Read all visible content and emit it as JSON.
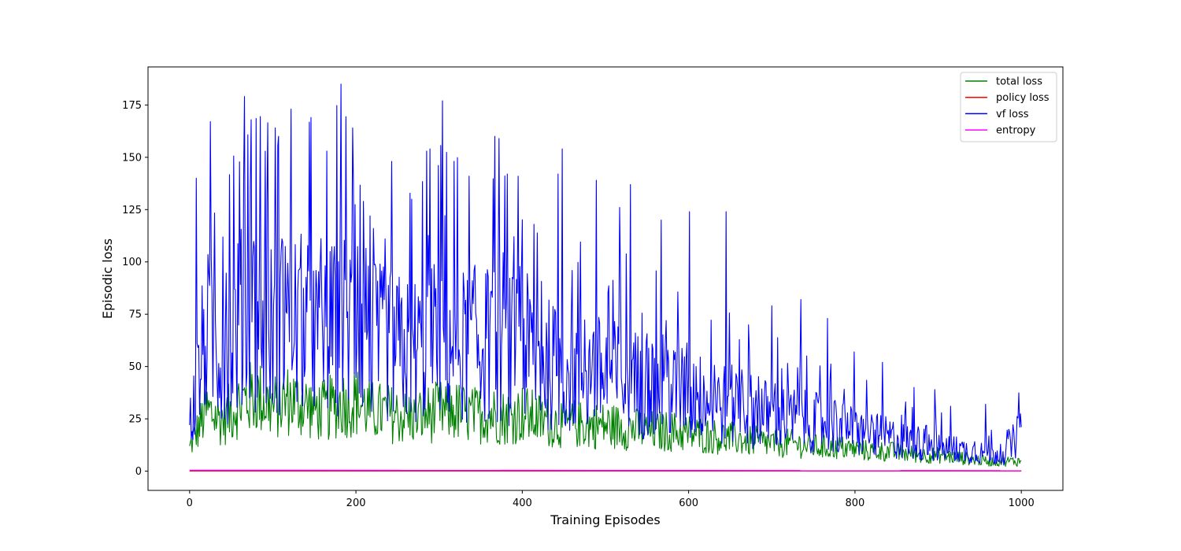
{
  "chart_data": {
    "type": "line",
    "title": "",
    "xlabel": "Training Episodes",
    "ylabel": "Episodic loss",
    "xlim": [
      -50,
      1050
    ],
    "ylim": [
      -9.2,
      193.2
    ],
    "xticks": [
      0,
      200,
      400,
      600,
      800,
      1000
    ],
    "yticks": [
      0,
      25,
      50,
      75,
      100,
      125,
      150,
      175
    ],
    "grid": false,
    "legend_position": "top-right",
    "series": [
      {
        "name": "total loss",
        "color": "#008000",
        "x": [
          0,
          20,
          40,
          60,
          80,
          100,
          120,
          140,
          160,
          180,
          200,
          220,
          240,
          260,
          280,
          300,
          320,
          340,
          360,
          380,
          400,
          420,
          440,
          460,
          480,
          500,
          520,
          540,
          560,
          580,
          600,
          620,
          640,
          660,
          680,
          700,
          720,
          740,
          760,
          780,
          800,
          820,
          840,
          860,
          880,
          900,
          920,
          940,
          960,
          980,
          1000
        ],
        "y": [
          12,
          30,
          26,
          34,
          38,
          32,
          36,
          33,
          30,
          34,
          35,
          30,
          29,
          27,
          28,
          30,
          30,
          28,
          29,
          27,
          29,
          26,
          24,
          24,
          23,
          23,
          22,
          21,
          20,
          20,
          19,
          18,
          17,
          16,
          15,
          14,
          14,
          13,
          12,
          12,
          11,
          10,
          10,
          9,
          8,
          8,
          7,
          6,
          5,
          5,
          5
        ]
      },
      {
        "name": "policy loss",
        "color": "#ff0000",
        "x": [
          0,
          1000
        ],
        "y": [
          0.1,
          0.1
        ]
      },
      {
        "name": "vf loss",
        "color": "#0000ff",
        "x": [
          0,
          20,
          40,
          60,
          80,
          100,
          120,
          140,
          160,
          180,
          200,
          220,
          240,
          260,
          280,
          300,
          320,
          340,
          360,
          380,
          400,
          420,
          440,
          460,
          480,
          500,
          520,
          540,
          560,
          580,
          600,
          620,
          640,
          660,
          680,
          700,
          720,
          740,
          760,
          780,
          800,
          820,
          840,
          860,
          880,
          900,
          920,
          940,
          960,
          980,
          1000
        ],
        "y": [
          22,
          70,
          60,
          75,
          80,
          70,
          78,
          72,
          66,
          74,
          76,
          65,
          63,
          60,
          62,
          66,
          65,
          62,
          64,
          60,
          63,
          56,
          52,
          50,
          49,
          48,
          46,
          44,
          42,
          40,
          38,
          36,
          34,
          32,
          30,
          28,
          27,
          25,
          24,
          22,
          20,
          18,
          17,
          15,
          14,
          12,
          11,
          10,
          9,
          8,
          21
        ]
      },
      {
        "name": "entropy",
        "color": "#ff00ff",
        "x": [
          0,
          1000
        ],
        "y": [
          0.4,
          0.2
        ]
      }
    ],
    "peaks": {
      "x": [
        8,
        25,
        66,
        74,
        103,
        107,
        122,
        146,
        165,
        182,
        196,
        243,
        285,
        289,
        304,
        336,
        367,
        372,
        382,
        395,
        443,
        448,
        489,
        517,
        530,
        567,
        601,
        645,
        700,
        735,
        767,
        799,
        833,
        871,
        896,
        915,
        957,
        985,
        998
      ],
      "y": [
        140,
        167,
        179,
        168,
        164,
        160,
        173,
        169,
        153,
        185,
        164,
        148,
        153,
        154,
        177,
        141,
        160,
        159,
        142,
        141,
        142,
        154,
        139,
        126,
        137,
        120,
        124,
        124,
        79,
        82,
        73,
        57,
        52,
        40,
        39,
        31,
        32,
        20,
        21
      ]
    }
  }
}
